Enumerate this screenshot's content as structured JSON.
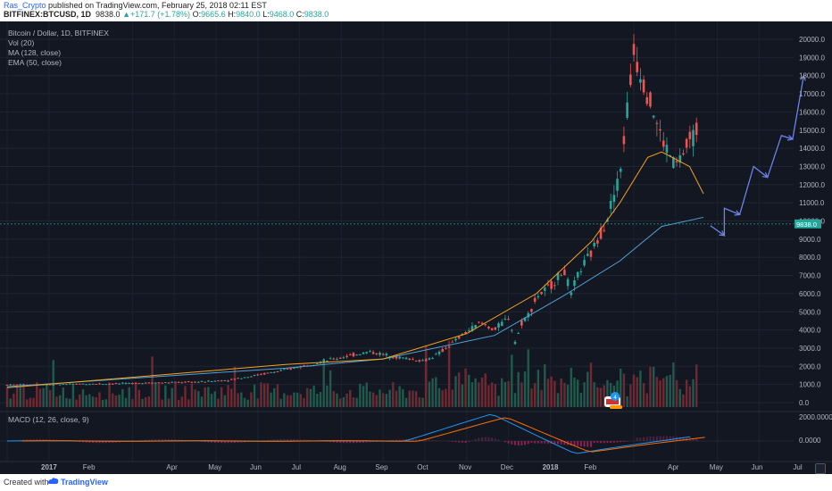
{
  "header": {
    "author": "Ras_Crypto",
    "published_text": "published on TradingView.com, February 25, 2018 02:11 EST",
    "symbol": "BITFINEX:BTCUSD, 1D",
    "last": "9838.0",
    "change": "+171.7 (+1.78%)",
    "o_label": "O:",
    "o_value": "9665.6",
    "h_label": "H:",
    "h_value": "9840.0",
    "l_label": "L:",
    "l_value": "9468.0",
    "c_label": "C:",
    "c_value": "9838.0"
  },
  "legend": {
    "title": "Bitcoin / Dollar, 1D, BITFINEX",
    "vol": "Vol (20)",
    "ma": "MA (128, close)",
    "ema": "EMA (50, close)",
    "macd": "MACD (12, 26, close, 9)"
  },
  "price_badge": "9838.0",
  "footer": {
    "created": "Created with",
    "brand": "TradingView"
  },
  "colors": {
    "background": "#131722",
    "up_candle": "#26a69a",
    "down_candle": "#ef5350",
    "ma_line": "#4fa3d6",
    "ema_line": "#f7a21b",
    "macd_line": "#2196f3",
    "signal_line": "#ff6d00",
    "arrows": "#6c84e8"
  },
  "chart_data": {
    "type": "candlestick",
    "title": "Bitcoin / Dollar, 1D, BITFINEX",
    "x_ticks": [
      "2017",
      "Feb",
      "Apr",
      "May",
      "Jun",
      "Jul",
      "Aug",
      "Sep",
      "Oct",
      "Nov",
      "Dec",
      "2018",
      "Feb",
      "Apr",
      "May",
      "Jun",
      "Jul"
    ],
    "y_ticks": [
      "20000.0",
      "19000.0",
      "18000.0",
      "17000.0",
      "16000.0",
      "15000.0",
      "14000.0",
      "13000.0",
      "12000.0",
      "11000.0",
      "10000.0",
      "9000.0",
      "8000.0",
      "7000.0",
      "6000.0",
      "5000.0",
      "4000.0",
      "3000.0",
      "2000.0",
      "1000.0",
      "0.0"
    ],
    "macd_ticks": [
      "2000.0000",
      "0.0000"
    ],
    "ylim": [
      0,
      20500
    ],
    "price_path_x": [
      0,
      8,
      14,
      16,
      20,
      24,
      26,
      28,
      30,
      31,
      33,
      34,
      35,
      36,
      36.5,
      37,
      37.5,
      38,
      39,
      40,
      40.5,
      41,
      42,
      43,
      44,
      44.5,
      45,
      46,
      47,
      48,
      49.5
    ],
    "price_path_y": [
      980,
      1050,
      1150,
      1250,
      1800,
      2500,
      2800,
      2500,
      2300,
      2700,
      3900,
      4400,
      4000,
      4700,
      3300,
      4500,
      4900,
      5800,
      6400,
      7300,
      5900,
      7100,
      8300,
      10000,
      12500,
      16000,
      19300,
      17000,
      14500,
      13000,
      15000
    ],
    "ma128": [
      [
        0,
        880
      ],
      [
        20,
        1900
      ],
      [
        27,
        2400
      ],
      [
        35,
        3700
      ],
      [
        40,
        5900
      ],
      [
        44,
        7800
      ],
      [
        47,
        9700
      ],
      [
        50,
        10200
      ]
    ],
    "ema50": [
      [
        0,
        820
      ],
      [
        20,
        2100
      ],
      [
        27,
        2400
      ],
      [
        33,
        3800
      ],
      [
        38,
        6000
      ],
      [
        42,
        8900
      ],
      [
        44,
        11000
      ],
      [
        46,
        13500
      ],
      [
        47,
        13800
      ],
      [
        49,
        13000
      ],
      [
        50,
        11500
      ]
    ],
    "projection": [
      [
        50.5,
        9740
      ],
      [
        51.5,
        9200
      ],
      [
        51.5,
        10700
      ],
      [
        52.6,
        10350
      ],
      [
        53.6,
        13000
      ],
      [
        54.6,
        12400
      ],
      [
        55.6,
        14700
      ],
      [
        56.4,
        14500
      ],
      [
        57.2,
        18000
      ]
    ],
    "current_price": 9838.0
  }
}
